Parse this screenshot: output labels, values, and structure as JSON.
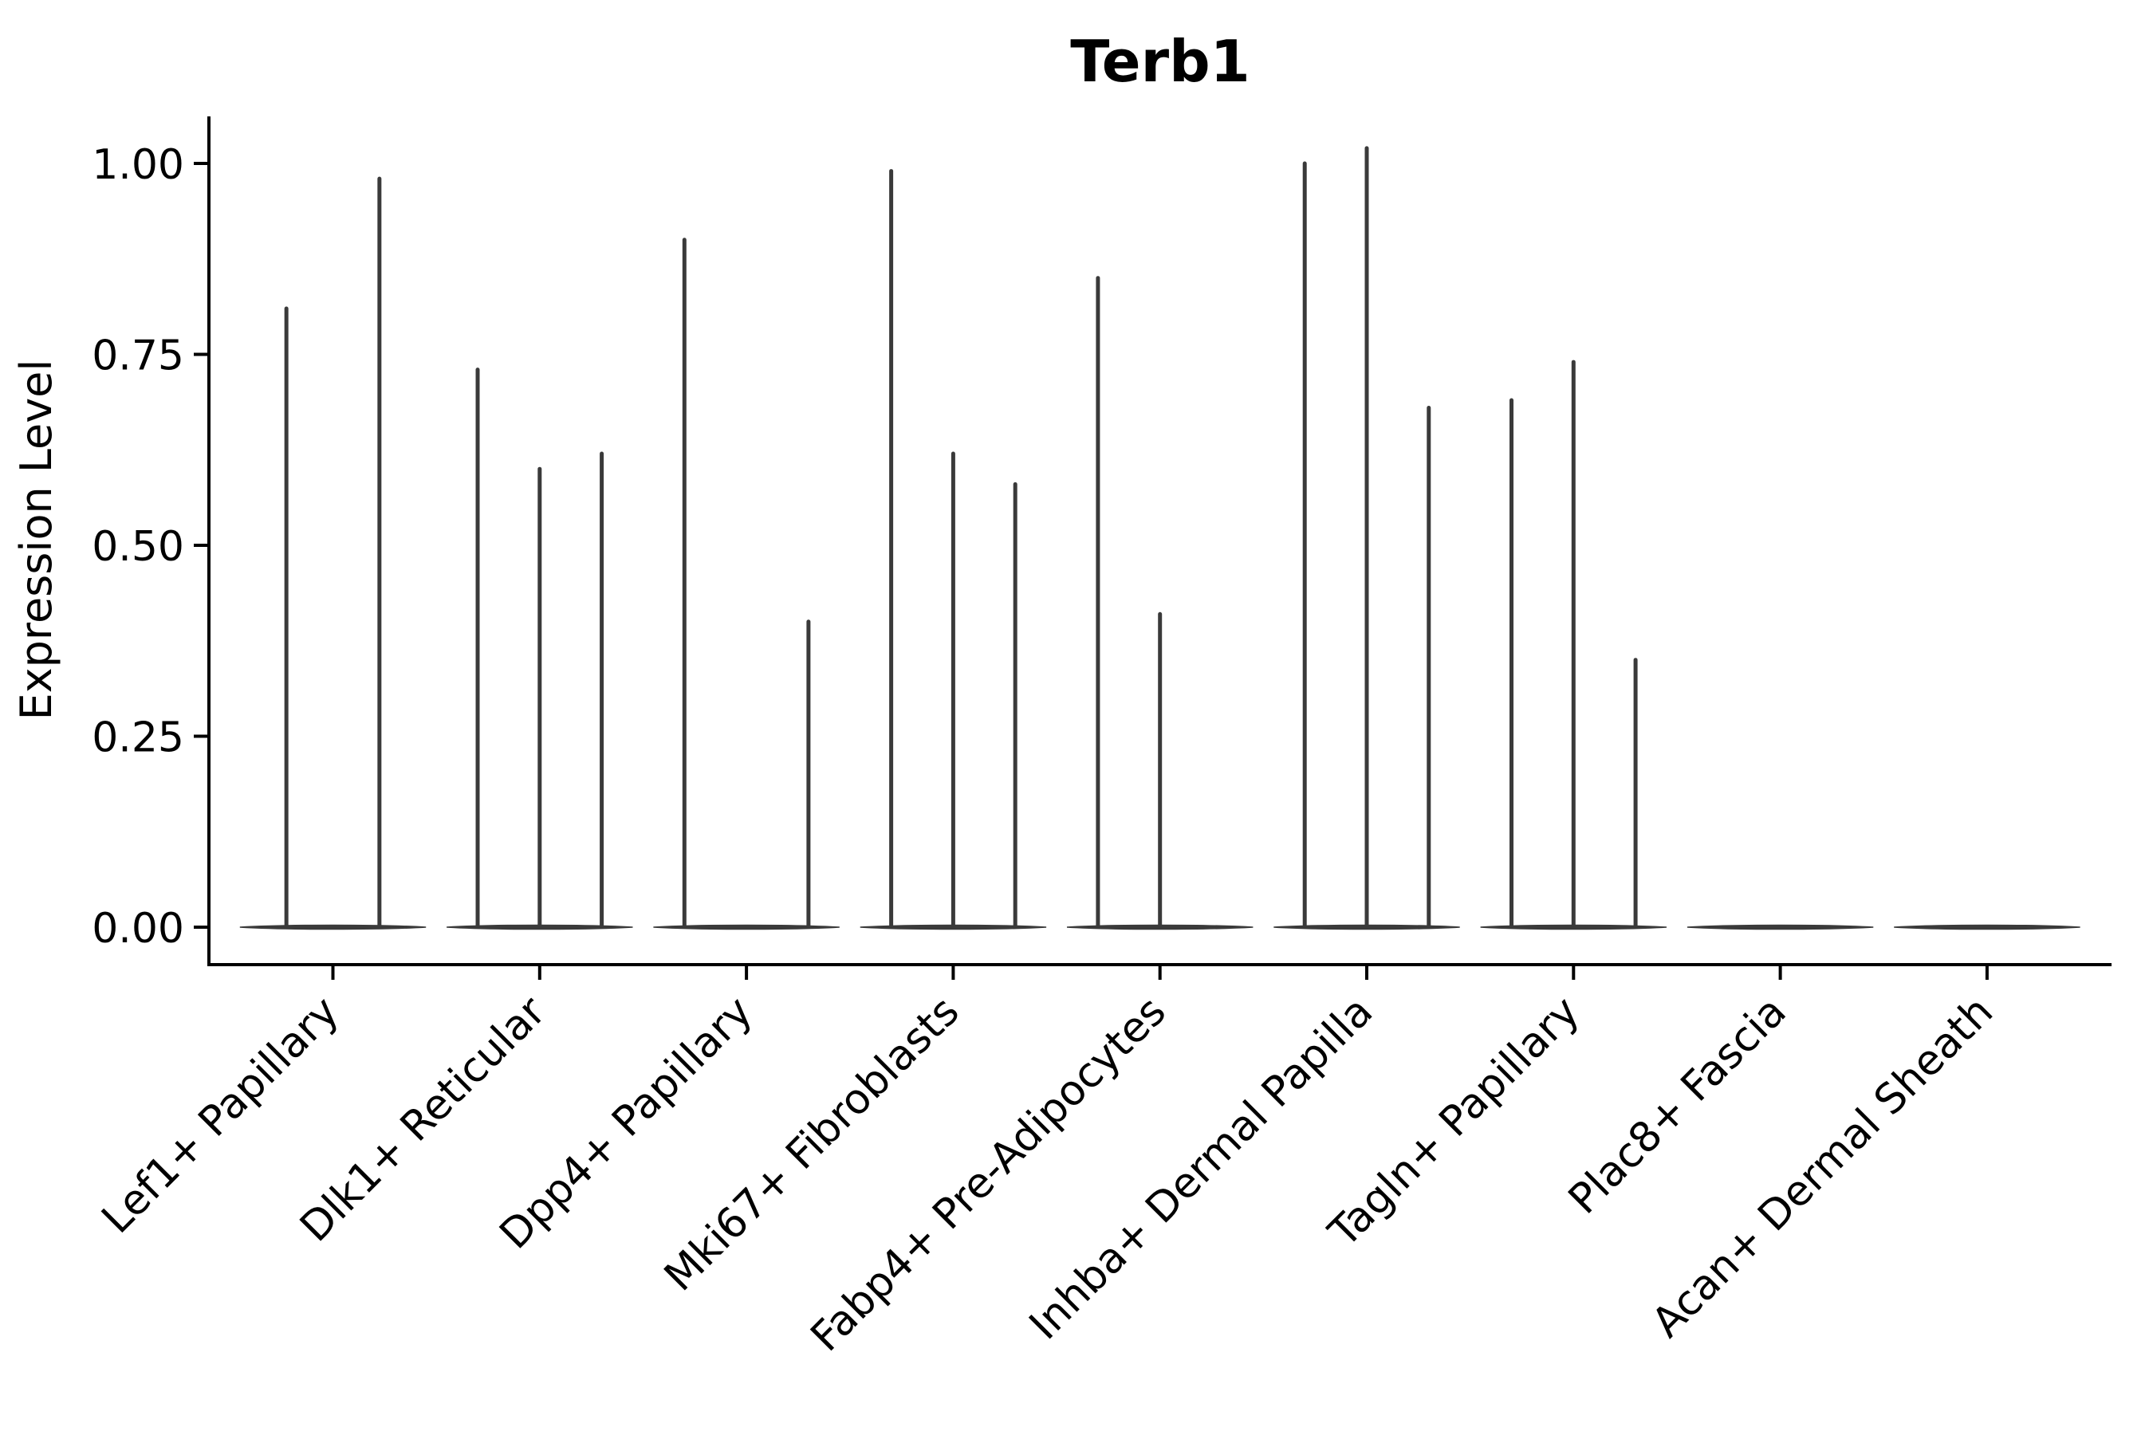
{
  "figure": {
    "background": "#ffffff"
  },
  "chart_data": {
    "type": "violin",
    "title": "Terb1",
    "ylabel": "Expression Level",
    "xlabel": "",
    "ylim": [
      0,
      1.02
    ],
    "yticks": [
      0.0,
      0.25,
      0.5,
      0.75,
      1.0
    ],
    "ytick_labels": [
      "0.00",
      "0.25",
      "0.50",
      "0.75",
      "1.00"
    ],
    "grid": false,
    "legend": "none",
    "violin_color": "#3A3A3A",
    "axis_color": "#000000",
    "categories": [
      "Lef1+ Papillary",
      "Dlk1+ Reticular",
      "Dpp4+ Papillary",
      "Mki67+ Fibroblasts",
      "Fabp4+ Pre-Adipocytes",
      "Inhba+ Dermal Papilla",
      "Tagln+ Papillary",
      "Plac8+ Fascia",
      "Acan+ Dermal Sheath"
    ],
    "groups": [
      {
        "category": "Lef1+ Papillary",
        "sub_violin_max": [
          0.81,
          0.98
        ]
      },
      {
        "category": "Dlk1+ Reticular",
        "sub_violin_max": [
          0.73,
          0.6,
          0.62
        ]
      },
      {
        "category": "Dpp4+ Papillary",
        "sub_violin_max": [
          0.9,
          0,
          0.4
        ]
      },
      {
        "category": "Mki67+ Fibroblasts",
        "sub_violin_max": [
          0.99,
          0.62,
          0.58
        ]
      },
      {
        "category": "Fabp4+ Pre-Adipocytes",
        "sub_violin_max": [
          0.85,
          0.41,
          0
        ]
      },
      {
        "category": "Inhba+ Dermal Papilla",
        "sub_violin_max": [
          1.0,
          1.02,
          0.68
        ]
      },
      {
        "category": "Tagln+ Papillary",
        "sub_violin_max": [
          0.69,
          0.74,
          0.35
        ]
      },
      {
        "category": "Plac8+ Fascia",
        "sub_violin_max": [
          0,
          0,
          0
        ]
      },
      {
        "category": "Acan+ Dermal Sheath",
        "sub_violin_max": [
          0,
          0,
          0
        ]
      }
    ]
  }
}
